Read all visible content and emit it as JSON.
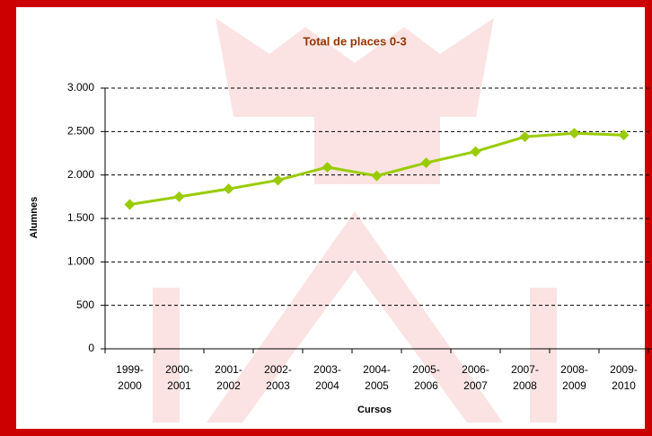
{
  "chart_data": {
    "type": "line",
    "title": "Total de places 0-3",
    "x_label": "Cursos",
    "y_label": "Alumnes",
    "categories": [
      "1999-2000",
      "2000-2001",
      "2001-2002",
      "2002-2003",
      "2003-2004",
      "2004-2005",
      "2005-2006",
      "2006-2007",
      "2007-2008",
      "2008-2009",
      "2009-2010"
    ],
    "series": [
      {
        "name": "Total de places 0-3",
        "color": "#99cc00",
        "values": [
          1660,
          1750,
          1840,
          1940,
          2090,
          1990,
          2140,
          2270,
          2440,
          2480,
          2460
        ]
      }
    ],
    "ylim": [
      0,
      3000
    ],
    "yticks": [
      0,
      500,
      {
        "value": 1000,
        "label": "1.000"
      },
      {
        "value": 1500,
        "label": "1.500"
      },
      {
        "value": 2000,
        "label": "2.000"
      },
      {
        "value": 2500,
        "label": "2.500"
      },
      {
        "value": 3000,
        "label": "3.000"
      }
    ],
    "grid": true
  }
}
